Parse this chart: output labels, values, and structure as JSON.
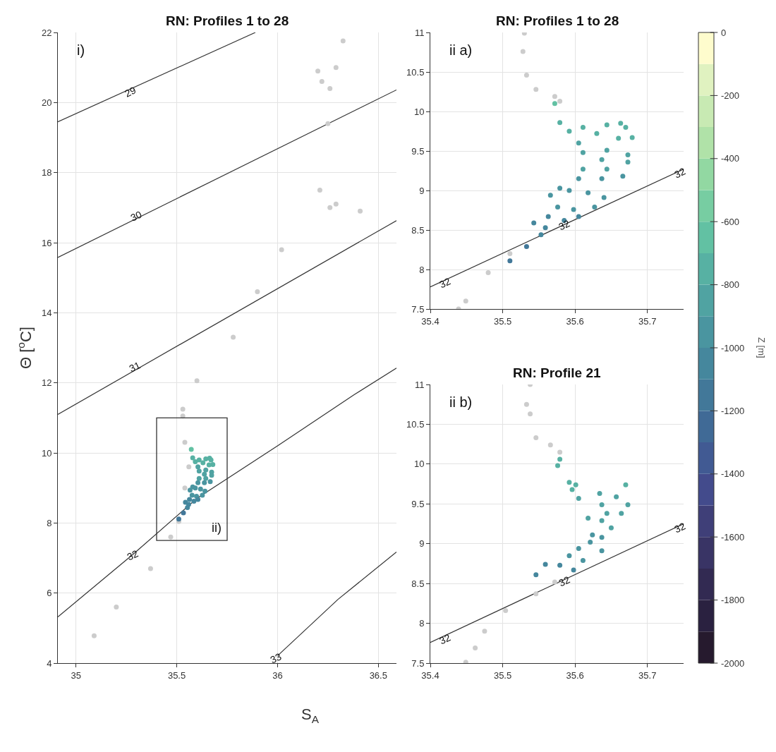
{
  "chart_data": [
    {
      "type": "scatter",
      "title": "RN: Profiles 1 to 28",
      "xlabel": "S$_{A}$",
      "ylabel": "Θ [$^{o}$C]",
      "xlim": [
        34.91,
        36.59
      ],
      "ylim": [
        4,
        22
      ],
      "xticks": [
        35,
        35.5,
        36,
        36.5
      ],
      "yticks": [
        4,
        6,
        8,
        10,
        12,
        14,
        16,
        18,
        20,
        22
      ],
      "grid": true,
      "annotations": [
        "i)",
        {
          "text": "29",
          "x": 35.27,
          "y": 20.3
        },
        {
          "text": "30",
          "x": 35.3,
          "y": 16.77
        },
        {
          "text": "31",
          "x": 35.29,
          "y": 12.46
        },
        {
          "text": "32",
          "x": 35.28,
          "y": 7.09
        },
        {
          "text": "33",
          "x": 35.99,
          "y": 4.15
        }
      ],
      "series": [
        {
          "type": "line",
          "color": "#333333",
          "x": [
            34.91,
            35.89
          ],
          "values": [
            19.45,
            22
          ]
        },
        {
          "type": "line",
          "color": "#333333",
          "x": [
            34.91,
            36.59
          ],
          "values": [
            15.58,
            20.36
          ]
        },
        {
          "type": "line",
          "color": "#333333",
          "x": [
            34.91,
            36.59
          ],
          "values": [
            11.1,
            16.63
          ]
        },
        {
          "type": "line",
          "color": "#333333",
          "x": [
            34.91,
            35.28,
            35.6,
            36.0,
            36.38,
            36.59
          ],
          "values": [
            5.32,
            7.09,
            8.7,
            10.2,
            11.66,
            12.42
          ]
        },
        {
          "type": "line",
          "color": "#333333",
          "x": [
            36.0,
            36.3,
            36.59
          ],
          "values": [
            4.21,
            5.82,
            7.17
          ]
        },
        {
          "color": "#cccccc",
          "x": [
            35.09,
            35.2,
            35.37,
            35.47,
            35.51,
            35.54,
            35.56,
            35.54,
            35.53,
            35.53,
            35.6,
            35.78,
            35.9,
            36.02,
            36.21,
            36.25,
            36.26,
            36.29,
            36.325,
            36.41,
            36.26,
            36.29,
            36.2,
            36.22
          ],
          "values": [
            4.78,
            5.6,
            6.7,
            7.6,
            8.04,
            9.0,
            9.6,
            10.3,
            11.05,
            11.25,
            12.06,
            13.3,
            14.6,
            15.8,
            17.5,
            19.4,
            20.4,
            21.0,
            21.76,
            16.9,
            17.0,
            17.1,
            20.9,
            20.6
          ]
        },
        {
          "x": [
            35.572,
            35.579,
            35.592,
            35.611,
            35.644,
            35.663,
            35.67,
            35.679,
            35.66,
            35.63,
            35.605,
            35.611,
            35.644,
            35.673,
            35.673,
            35.637,
            35.611,
            35.644,
            35.666,
            35.637,
            35.605,
            35.579,
            35.566,
            35.592,
            35.618,
            35.64,
            35.627,
            35.598,
            35.576,
            35.563,
            35.543,
            35.559,
            35.585,
            35.605,
            35.553,
            35.533,
            35.51
          ],
          "values": [
            10.1,
            9.86,
            9.75,
            9.8,
            9.83,
            9.85,
            9.8,
            9.67,
            9.66,
            9.72,
            9.6,
            9.48,
            9.51,
            9.45,
            9.36,
            9.39,
            9.27,
            9.27,
            9.18,
            9.15,
            9.15,
            9.03,
            8.94,
            9.0,
            8.97,
            8.91,
            8.79,
            8.76,
            8.79,
            8.67,
            8.59,
            8.53,
            8.62,
            8.67,
            8.44,
            8.29,
            8.11
          ],
          "colors": [
            "#62c1a3",
            "#57b1a3",
            "#57b1a3",
            "#57b1a3",
            "#57b1a3",
            "#57b1a3",
            "#57b1a3",
            "#57b1a3",
            "#57b1a3",
            "#57b1a3",
            "#50a3a2",
            "#50a3a2",
            "#50a3a2",
            "#50a3a2",
            "#50a3a2",
            "#50a3a2",
            "#50a3a2",
            "#50a3a2",
            "#4a95a0",
            "#4a95a0",
            "#4a95a0",
            "#4a95a0",
            "#4a95a0",
            "#4a95a0",
            "#4a95a0",
            "#4a95a0",
            "#4a95a0",
            "#4a95a0",
            "#4a95a0",
            "#45879d",
            "#45879d",
            "#45879d",
            "#45879d",
            "#45879d",
            "#45879d",
            "#427899",
            "#427899"
          ]
        }
      ]
    },
    {
      "type": "scatter",
      "title": "RN: Profiles 1 to 28",
      "xlim": [
        35.4,
        35.75
      ],
      "ylim": [
        7.5,
        11
      ],
      "xticks": [
        35.4,
        35.5,
        35.6,
        35.7
      ],
      "yticks": [
        7.5,
        8,
        8.5,
        9,
        9.5,
        10,
        10.5,
        11
      ],
      "grid": true,
      "clim": [
        -2000,
        0
      ],
      "cticks": [
        -2000,
        -1800,
        -1600,
        -1400,
        -1200,
        -1000,
        -800,
        -600,
        -400,
        -200,
        0
      ],
      "clabel": "Z [m]",
      "annotations": [
        "ii a)",
        "ii)",
        {
          "text": "32",
          "x": 35.42,
          "y": 7.83
        },
        {
          "text": "32",
          "x": 35.585,
          "y": 8.56
        },
        {
          "text": "32",
          "x": 35.745,
          "y": 9.22
        }
      ],
      "series": [
        {
          "type": "line",
          "color": "#333333",
          "x": [
            35.4,
            35.75
          ],
          "values": [
            7.78,
            9.27
          ]
        },
        {
          "color": "#cccccc",
          "x": [
            35.53,
            35.528,
            35.533,
            35.546,
            35.572,
            35.579,
            35.51,
            35.48,
            35.449,
            35.439
          ],
          "values": [
            10.99,
            10.76,
            10.46,
            10.28,
            10.19,
            10.13,
            8.2,
            7.96,
            7.6,
            7.5
          ]
        },
        {
          "x": [
            35.572,
            35.579,
            35.592,
            35.611,
            35.644,
            35.663,
            35.67,
            35.679,
            35.66,
            35.63,
            35.605,
            35.611,
            35.644,
            35.673,
            35.673,
            35.637,
            35.611,
            35.644,
            35.666,
            35.637,
            35.605,
            35.579,
            35.566,
            35.592,
            35.618,
            35.64,
            35.627,
            35.598,
            35.576,
            35.563,
            35.543,
            35.559,
            35.585,
            35.605,
            35.553,
            35.533,
            35.51
          ],
          "values": [
            10.1,
            9.86,
            9.75,
            9.8,
            9.83,
            9.85,
            9.8,
            9.67,
            9.66,
            9.72,
            9.6,
            9.48,
            9.51,
            9.45,
            9.36,
            9.39,
            9.27,
            9.27,
            9.18,
            9.15,
            9.15,
            9.03,
            8.94,
            9.0,
            8.97,
            8.91,
            8.79,
            8.76,
            8.79,
            8.67,
            8.59,
            8.53,
            8.62,
            8.67,
            8.44,
            8.29,
            8.11
          ],
          "colors": [
            "#62c1a3",
            "#57b1a3",
            "#57b1a3",
            "#57b1a3",
            "#57b1a3",
            "#57b1a3",
            "#57b1a3",
            "#57b1a3",
            "#57b1a3",
            "#57b1a3",
            "#50a3a2",
            "#50a3a2",
            "#50a3a2",
            "#50a3a2",
            "#50a3a2",
            "#50a3a2",
            "#50a3a2",
            "#50a3a2",
            "#4a95a0",
            "#4a95a0",
            "#4a95a0",
            "#4a95a0",
            "#4a95a0",
            "#4a95a0",
            "#4a95a0",
            "#4a95a0",
            "#4a95a0",
            "#4a95a0",
            "#4a95a0",
            "#45879d",
            "#45879d",
            "#45879d",
            "#45879d",
            "#45879d",
            "#45879d",
            "#427899",
            "#427899"
          ]
        }
      ]
    },
    {
      "type": "scatter",
      "title": "RN: Profile 21",
      "xlim": [
        35.4,
        35.75
      ],
      "ylim": [
        7.5,
        11
      ],
      "xticks": [
        35.4,
        35.5,
        35.6,
        35.7
      ],
      "yticks": [
        7.5,
        8,
        8.5,
        9,
        9.5,
        10,
        10.5,
        11
      ],
      "grid": true,
      "annotations": [
        "ii b)",
        {
          "text": "32",
          "x": 35.42,
          "y": 7.8
        },
        {
          "text": "32",
          "x": 35.585,
          "y": 8.53
        },
        {
          "text": "32",
          "x": 35.745,
          "y": 9.2
        }
      ],
      "series": [
        {
          "type": "line",
          "color": "#333333",
          "x": [
            35.4,
            35.75
          ],
          "values": [
            7.76,
            9.25
          ]
        },
        {
          "color": "#cccccc",
          "x": [
            35.538,
            35.533,
            35.538,
            35.546,
            35.566,
            35.579,
            35.572,
            35.546,
            35.504,
            35.475,
            35.462,
            35.449
          ],
          "values": [
            11.0,
            10.75,
            10.63,
            10.33,
            10.24,
            10.15,
            8.52,
            8.37,
            8.16,
            7.9,
            7.69,
            7.51
          ]
        },
        {
          "x": [
            35.579,
            35.576,
            35.592,
            35.601,
            35.596,
            35.605,
            35.634,
            35.67,
            35.657,
            35.637,
            35.618,
            35.644,
            35.673,
            35.664,
            35.637,
            35.624,
            35.65,
            35.637,
            35.621,
            35.605,
            35.592,
            35.637,
            35.611,
            35.579,
            35.559,
            35.546,
            35.598
          ],
          "values": [
            10.06,
            9.98,
            9.77,
            9.74,
            9.68,
            9.57,
            9.63,
            9.74,
            9.59,
            9.49,
            9.32,
            9.38,
            9.49,
            9.38,
            9.29,
            9.11,
            9.2,
            9.08,
            9.02,
            8.94,
            8.85,
            8.91,
            8.79,
            8.73,
            8.74,
            8.61,
            8.67
          ],
          "colors": [
            "#57b1a3",
            "#57b1a3",
            "#57b1a3",
            "#57b1a3",
            "#57b1a3",
            "#50a3a2",
            "#50a3a2",
            "#57b1a3",
            "#50a3a2",
            "#50a3a2",
            "#50a3a2",
            "#50a3a2",
            "#50a3a2",
            "#50a3a2",
            "#50a3a2",
            "#4a95a0",
            "#50a3a2",
            "#4a95a0",
            "#4a95a0",
            "#4a95a0",
            "#4a95a0",
            "#4a95a0",
            "#4a95a0",
            "#45879d",
            "#45879d",
            "#45879d",
            "#45879d"
          ]
        }
      ]
    }
  ]
}
